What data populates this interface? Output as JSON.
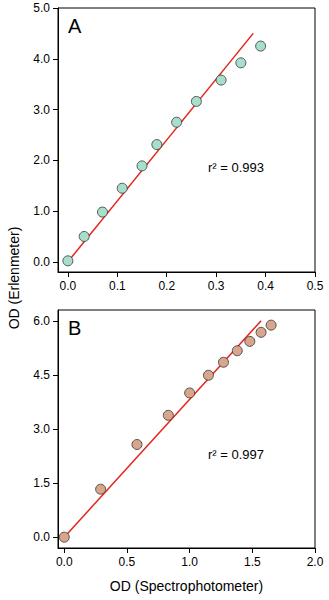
{
  "xlabel": "OD (Spectrophotometer)",
  "ylabel": "OD (Erlenmeter)",
  "chart_data": [
    {
      "type": "scatter",
      "title": "A",
      "annotation": "r² = 0.993",
      "xlim": [
        -0.02,
        0.5
      ],
      "xticks": [
        {
          "value": 0,
          "label": "0.0"
        },
        0.1,
        0.2,
        0.3,
        0.4,
        0.5
      ],
      "ylim": [
        -0.2,
        5.0
      ],
      "yticks": [
        {
          "value": 0,
          "label": "0.0"
        },
        {
          "value": 1,
          "label": "1.0"
        },
        {
          "value": 2,
          "label": "2.0"
        },
        {
          "value": 3,
          "label": "3.0"
        },
        {
          "value": 4,
          "label": "4.0"
        },
        {
          "value": 5,
          "label": "5.0"
        }
      ],
      "grid": false,
      "series": [
        {
          "type": "scatter",
          "marker": "circle",
          "color": "#a8dfcc",
          "x": [
            0,
            0.033,
            0.07,
            0.11,
            0.15,
            0.18,
            0.22,
            0.26,
            0.31,
            0.35,
            0.39
          ],
          "values": [
            0.02,
            0.5,
            0.98,
            1.45,
            1.89,
            2.31,
            2.75,
            3.16,
            3.58,
            3.92,
            4.25
          ]
        },
        {
          "type": "line",
          "line_style": "solid",
          "color": "#e3261c",
          "x": [
            0,
            0.375
          ],
          "values": [
            0,
            4.5
          ]
        }
      ]
    },
    {
      "type": "scatter",
      "title": "B",
      "annotation": "r² = 0.997",
      "xlim": [
        -0.05,
        2.0
      ],
      "xticks": [
        {
          "value": 0,
          "label": "0.0"
        },
        0.5,
        {
          "value": 1,
          "label": "1.0"
        },
        1.5,
        {
          "value": 2,
          "label": "2.0"
        }
      ],
      "ylim": [
        -0.3,
        6.3
      ],
      "yticks": [
        {
          "value": 0,
          "label": "0.0"
        },
        1.5,
        {
          "value": 3,
          "label": "3.0"
        },
        4.5,
        {
          "value": 6,
          "label": "6.0"
        }
      ],
      "grid": false,
      "series": [
        {
          "type": "scatter",
          "marker": "circle",
          "color": "#d8a68c",
          "x": [
            0,
            0.29,
            0.58,
            0.83,
            1.0,
            1.15,
            1.27,
            1.38,
            1.48,
            1.57,
            1.65
          ],
          "values": [
            0.0,
            1.33,
            2.57,
            3.38,
            4.0,
            4.49,
            4.85,
            5.17,
            5.43,
            5.68,
            5.88
          ]
        },
        {
          "type": "line",
          "line_style": "solid",
          "color": "#e3261c",
          "x": [
            0,
            1.57
          ],
          "values": [
            0,
            6.0
          ]
        }
      ]
    }
  ]
}
